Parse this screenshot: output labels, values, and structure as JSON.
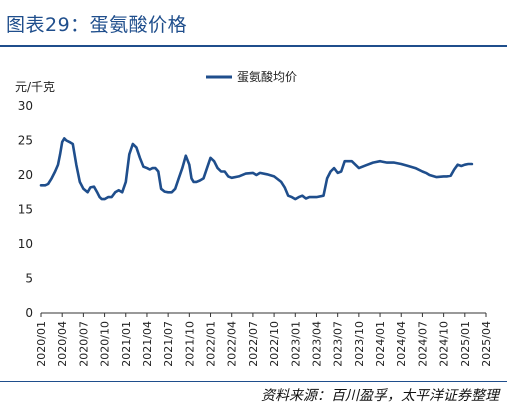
{
  "header": {
    "title": "图表29：蛋氨酸价格"
  },
  "footer": {
    "source": "资料来源：百川盈孚，太平洋证券整理"
  },
  "colors": {
    "accent": "#1f4e8c",
    "line": "#1f4e8c"
  },
  "chart_data": {
    "type": "line",
    "ylabel": "元/千克",
    "ylim": [
      0,
      30
    ],
    "yticks": [
      0,
      5,
      10,
      15,
      20,
      25,
      30
    ],
    "xlim": [
      0,
      63
    ],
    "xticks": [
      "2020/01",
      "2020/04",
      "2020/07",
      "2020/10",
      "2021/01",
      "2021/04",
      "2021/07",
      "2021/10",
      "2022/01",
      "2022/04",
      "2022/07",
      "2022/10",
      "2023/01",
      "2023/04",
      "2023/07",
      "2023/10",
      "2024/01",
      "2024/04",
      "2024/07",
      "2024/10",
      "2025/01",
      "2025/04"
    ],
    "legend": {
      "position": "top-center"
    },
    "grid": false,
    "series": [
      {
        "name": "蛋氨酸均价",
        "x": [
          0,
          0.6,
          1.0,
          1.5,
          2.0,
          2.4,
          2.7,
          3.0,
          3.3,
          3.6,
          4.0,
          4.5,
          5.0,
          5.5,
          6.0,
          6.6,
          7.0,
          7.5,
          8.0,
          8.3,
          8.6,
          9.0,
          9.5,
          10.0,
          10.5,
          11.0,
          11.5,
          12.0,
          12.5,
          13.0,
          13.5,
          14.0,
          14.5,
          15.0,
          15.4,
          15.8,
          16.2,
          16.6,
          17.0,
          17.5,
          18.0,
          18.5,
          19.0,
          19.5,
          20.0,
          20.5,
          21.0,
          21.3,
          21.6,
          22.0,
          22.5,
          23.0,
          23.5,
          24.0,
          24.5,
          25.0,
          25.5,
          26.0,
          26.5,
          27.0,
          28.0,
          29.0,
          30.0,
          30.5,
          31.0,
          32.0,
          33.0,
          34.0,
          34.5,
          35.0,
          35.5,
          36.0,
          36.5,
          37.0,
          37.5,
          38.0,
          39.0,
          40.0,
          40.5,
          41.0,
          41.5,
          42.0,
          42.5,
          43.0,
          44.0,
          45.0,
          46.0,
          47.0,
          48.0,
          49.0,
          50.0,
          51.0,
          52.0,
          53.0,
          54.0,
          54.5,
          55.0,
          56.0,
          57.0,
          57.5,
          58.0,
          58.5,
          59.0,
          59.5,
          60.0,
          60.5,
          61.0
        ],
        "values": [
          18.5,
          18.5,
          18.7,
          19.5,
          20.5,
          21.5,
          23.0,
          24.8,
          25.3,
          25.0,
          24.8,
          24.5,
          21.5,
          19.0,
          18.0,
          17.5,
          18.2,
          18.3,
          17.4,
          16.8,
          16.5,
          16.5,
          16.8,
          16.8,
          17.5,
          17.8,
          17.5,
          19.0,
          23.0,
          24.5,
          24.0,
          22.5,
          21.2,
          21.0,
          20.8,
          21.0,
          21.0,
          20.5,
          18.0,
          17.6,
          17.5,
          17.5,
          18.0,
          19.5,
          21.0,
          22.8,
          21.5,
          19.5,
          19.0,
          19.0,
          19.2,
          19.5,
          21.0,
          22.5,
          22.0,
          21.0,
          20.5,
          20.5,
          19.8,
          19.6,
          19.8,
          20.2,
          20.3,
          20.0,
          20.3,
          20.1,
          19.8,
          19.0,
          18.2,
          17.0,
          16.8,
          16.5,
          16.8,
          17.0,
          16.6,
          16.8,
          16.8,
          17.0,
          19.5,
          20.5,
          21.0,
          20.3,
          20.5,
          22.0,
          22.0,
          21.0,
          21.4,
          21.8,
          22.0,
          21.8,
          21.8,
          21.6,
          21.3,
          21.0,
          20.5,
          20.3,
          20.0,
          19.7,
          19.8,
          19.8,
          19.9,
          20.8,
          21.5,
          21.3,
          21.5,
          21.6,
          21.6
        ]
      }
    ]
  }
}
